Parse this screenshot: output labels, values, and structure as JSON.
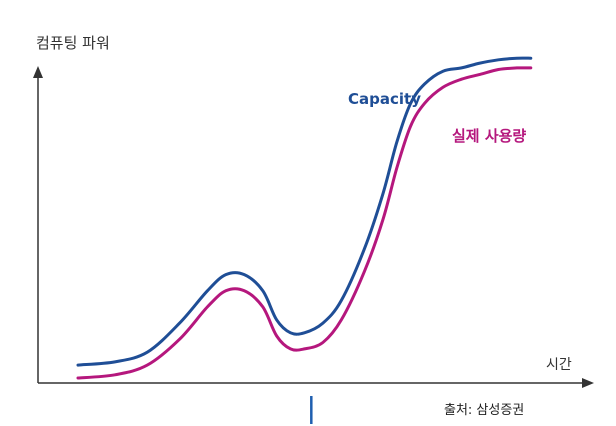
{
  "chart_data": {
    "type": "line",
    "ylabel": "컴퓨팅 파워",
    "xlabel": "시간",
    "source": "출처: 삼성증권",
    "xlim": [
      0,
      100
    ],
    "ylim": [
      0,
      100
    ],
    "colors": {
      "axis": "#333333",
      "capacity": "#1f4e96",
      "usage": "#b5177d",
      "marker": "#1f5fb0"
    },
    "marker_x": 50.5,
    "series": [
      {
        "name": "Capacity",
        "key": "capacity",
        "x": [
          0,
          8,
          15,
          22,
          28,
          32,
          36,
          40,
          43,
          46,
          49,
          53,
          57,
          62,
          66,
          69,
          72,
          75,
          79,
          83,
          87,
          91,
          95,
          98
        ],
        "y": [
          4,
          5,
          8,
          17,
          27,
          32,
          32,
          27,
          18,
          14,
          14,
          17,
          24,
          40,
          57,
          73,
          85,
          91,
          95,
          96,
          97.5,
          98.5,
          99,
          99
        ]
      },
      {
        "name": "실제 사용량",
        "key": "usage",
        "x": [
          0,
          8,
          15,
          22,
          28,
          32,
          36,
          40,
          43,
          46,
          49,
          53,
          57,
          62,
          66,
          69,
          72,
          75,
          79,
          83,
          87,
          91,
          95,
          98
        ],
        "y": [
          0,
          1,
          4,
          12,
          22,
          27,
          27,
          22,
          13,
          9,
          9,
          11,
          18,
          33,
          49,
          65,
          78,
          85,
          90,
          92.5,
          94,
          95.5,
          96,
          96
        ]
      }
    ]
  }
}
